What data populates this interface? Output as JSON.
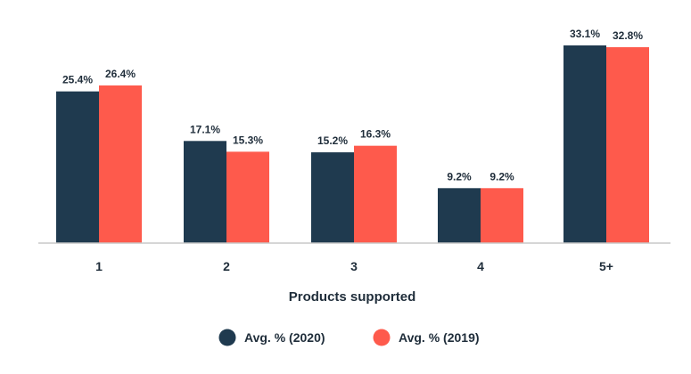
{
  "chart_data": {
    "type": "bar",
    "categories": [
      "1",
      "2",
      "3",
      "4",
      "5+"
    ],
    "series": [
      {
        "name": "Avg. % (2020)",
        "values": [
          25.4,
          17.1,
          15.2,
          9.2,
          33.1
        ],
        "labels": [
          "25.4%",
          "17.1%",
          "15.2%",
          "9.2%",
          "33.1%"
        ],
        "color": "#1f3a4f"
      },
      {
        "name": "Avg. % (2019)",
        "values": [
          26.4,
          15.3,
          16.3,
          9.2,
          32.8
        ],
        "labels": [
          "26.4%",
          "15.3%",
          "16.3%",
          "9.2%",
          "32.8%"
        ],
        "color": "#fe5a4c"
      }
    ],
    "xlabel": "Products supported",
    "ylabel": "",
    "ylim": [
      0,
      33.1
    ],
    "grid": false,
    "legend_position": "bottom"
  }
}
